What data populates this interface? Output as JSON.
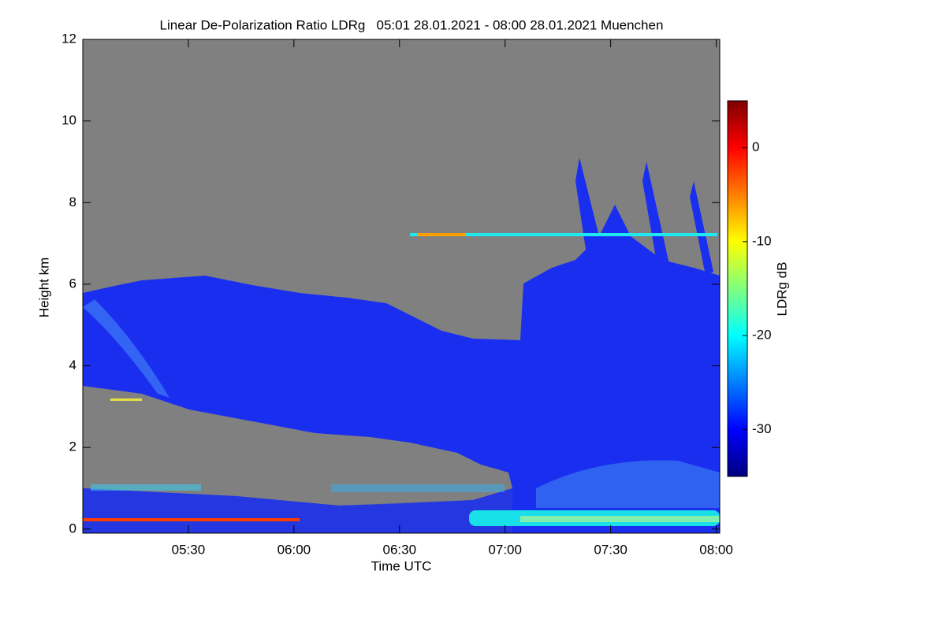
{
  "chart_data": {
    "type": "heatmap",
    "title": "Linear De-Polarization Ratio LDRg   05:01 28.01.2021 - 08:00 28.01.2021 Muenchen",
    "x_label": "Time UTC",
    "y_label": "Height km",
    "colorbar_label": "LDRg dB",
    "xlim": [
      "05:00",
      "08:01"
    ],
    "xticks": [
      "05:30",
      "06:00",
      "06:30",
      "07:00",
      "07:30",
      "08:00"
    ],
    "ylim": [
      -0.1,
      12
    ],
    "yticks": [
      0,
      2,
      4,
      6,
      8,
      10,
      12
    ],
    "clim": [
      -35,
      5
    ],
    "cticks": [
      0,
      -10,
      -20,
      -30
    ],
    "colormap": "jet"
  }
}
